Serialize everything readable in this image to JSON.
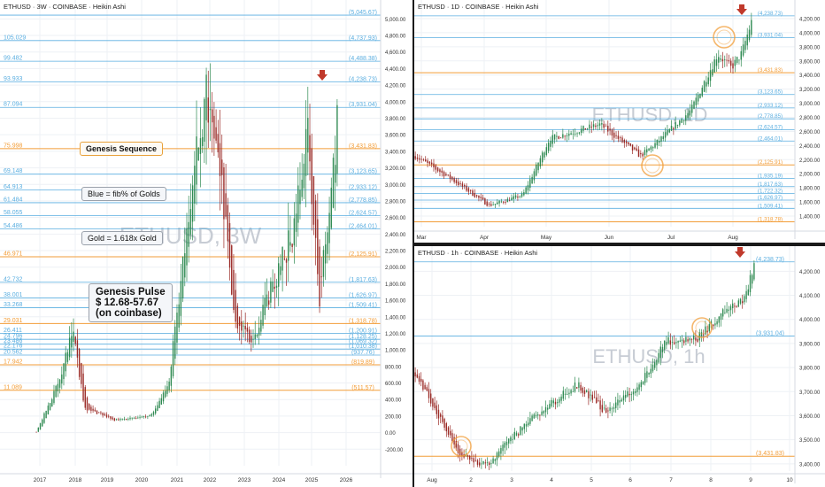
{
  "colors": {
    "orange": "#f29d38",
    "blue": "#5aaee0",
    "up": "#2f8a52",
    "down": "#9a2a26",
    "marker": "#c0392b",
    "grid": "#eef1f5"
  },
  "chart_data": [
    {
      "type": "candlestick",
      "title": "ETHUSD · 3W · COINBASE · Heikin Ashi",
      "watermark": "ETHUSD, 3W",
      "ylim": [
        -400,
        5100
      ],
      "x_ticks": [
        "2017",
        "2018",
        "2019",
        "2020",
        "2021",
        "2022",
        "2023",
        "2024",
        "2025",
        "2026"
      ],
      "y_ticks": [
        "5,000.00",
        "4,800.00",
        "4,600.00",
        "4,400.00",
        "4,200.00",
        "4,000.00",
        "3,800.00",
        "3,600.00",
        "3,400.00",
        "3,200.00",
        "3,000.00",
        "2,800.00",
        "2,600.00",
        "2,400.00",
        "2,200.00",
        "2,000.00",
        "1,800.00",
        "1,600.00",
        "1,400.00",
        "1,200.00",
        "1,000.00",
        "800.00",
        "600.00",
        "400.00",
        "200.00",
        "0.00",
        "-200.00"
      ],
      "y_tick_values": [
        5000,
        4800,
        4600,
        4400,
        4200,
        4000,
        3800,
        3600,
        3400,
        3200,
        3000,
        2800,
        2600,
        2400,
        2200,
        2000,
        1800,
        1600,
        1400,
        1200,
        1000,
        800,
        600,
        400,
        200,
        0,
        -200
      ],
      "levels": [
        {
          "left": "",
          "right": "(5,045.67)",
          "value": 5045.67,
          "color": "blue"
        },
        {
          "left": "105.029",
          "right": "(4,737.93)",
          "value": 4737.93,
          "color": "blue"
        },
        {
          "left": "99.482",
          "right": "(4,488.38)",
          "value": 4488.38,
          "color": "blue"
        },
        {
          "left": "93.933",
          "right": "(4,238.73)",
          "value": 4238.73,
          "color": "blue"
        },
        {
          "left": "87.094",
          "right": "(3,931.04)",
          "value": 3931.04,
          "color": "blue"
        },
        {
          "left": "75.998",
          "right": "(3,431.83)",
          "value": 3431.83,
          "color": "orange"
        },
        {
          "left": "69.148",
          "right": "(3,123.65)",
          "value": 3123.65,
          "color": "blue"
        },
        {
          "left": "64.913",
          "right": "(2,933.12)",
          "value": 2933.12,
          "color": "blue"
        },
        {
          "left": "61.484",
          "right": "(2,778.85)",
          "value": 2778.85,
          "color": "blue"
        },
        {
          "left": "58.055",
          "right": "(2,624.57)",
          "value": 2624.57,
          "color": "blue"
        },
        {
          "left": "54.486",
          "right": "(2,464.01)",
          "value": 2464.01,
          "color": "blue"
        },
        {
          "left": "46.971",
          "right": "(2,125.91)",
          "value": 2125.91,
          "color": "orange"
        },
        {
          "left": "42.732",
          "right": "(1,817.63)",
          "value": 1817.63,
          "color": "blue"
        },
        {
          "left": "38.001",
          "right": "(1,626.97)",
          "value": 1626.97,
          "color": "blue"
        },
        {
          "left": "33.268",
          "right": "(1,509.41)",
          "value": 1509.41,
          "color": "blue"
        },
        {
          "left": "29.031",
          "right": "(1,318.78)",
          "value": 1318.78,
          "color": "orange"
        },
        {
          "left": "26.411",
          "right": "(1,200.91)",
          "value": 1200.91,
          "color": "blue"
        },
        {
          "left": "24.796",
          "right": "(1,128.25)",
          "value": 1128.25,
          "color": "blue"
        },
        {
          "left": "23.486",
          "right": "(1,069.32)",
          "value": 1069.32,
          "color": "blue"
        },
        {
          "left": "22.176",
          "right": "(1,010.38)",
          "value": 1010.38,
          "color": "blue"
        },
        {
          "left": "20.562",
          "right": "(937.76)",
          "value": 937.76,
          "color": "blue"
        },
        {
          "left": "17.942",
          "right": "(819.89)",
          "value": 819.89,
          "color": "orange"
        },
        {
          "left": "11.089",
          "right": "(511.57)",
          "value": 511.57,
          "color": "orange"
        }
      ],
      "annotations": {
        "genesis_sequence": "Genesis Sequence",
        "blue_note": "Blue = fib% of Golds",
        "gold_note": "Gold = 1.618x Gold",
        "pulse_line1": "Genesis Pulse",
        "pulse_line2": "$ 12.68-57.67",
        "pulse_line3": "(on coinbase)"
      }
    },
    {
      "type": "candlestick",
      "title": "ETHUSD · 1D · COINBASE · Heikin Ashi",
      "watermark": "ETHUSD, 1D",
      "ylim": [
        1250,
        4300
      ],
      "x_ticks": [
        "Mar",
        "Apr",
        "May",
        "Jun",
        "Jul",
        "Aug"
      ],
      "y_ticks": [
        "4,200.00",
        "4,000.00",
        "3,800.00",
        "3,600.00",
        "3,400.00",
        "3,200.00",
        "3,000.00",
        "2,800.00",
        "2,600.00",
        "2,400.00",
        "2,200.00",
        "2,000.00",
        "1,800.00",
        "1,600.00",
        "1,400.00"
      ],
      "y_tick_values": [
        4200,
        4000,
        3800,
        3600,
        3400,
        3200,
        3000,
        2800,
        2600,
        2400,
        2200,
        2000,
        1800,
        1600,
        1400
      ],
      "levels": [
        {
          "right": "(4,238.73)",
          "value": 4238.73,
          "color": "blue"
        },
        {
          "right": "(3,931.04)",
          "value": 3931.04,
          "color": "blue"
        },
        {
          "right": "(3,431.83)",
          "value": 3431.83,
          "color": "orange"
        },
        {
          "right": "(3,123.65)",
          "value": 3123.65,
          "color": "blue"
        },
        {
          "right": "(2,933.12)",
          "value": 2933.12,
          "color": "blue"
        },
        {
          "right": "(2,778.85)",
          "value": 2778.85,
          "color": "blue"
        },
        {
          "right": "(2,624.57)",
          "value": 2624.57,
          "color": "blue"
        },
        {
          "right": "(2,464.01)",
          "value": 2464.01,
          "color": "blue"
        },
        {
          "right": "(2,125.91)",
          "value": 2125.91,
          "color": "orange"
        },
        {
          "right": "(1,935.19)",
          "value": 1935.19,
          "color": "blue"
        },
        {
          "right": "(1,817.63)",
          "value": 1817.63,
          "color": "blue"
        },
        {
          "right": "(1,722.32)",
          "value": 1722.32,
          "color": "blue"
        },
        {
          "right": "(1,626.97)",
          "value": 1626.97,
          "color": "blue"
        },
        {
          "right": "(1,509.41)",
          "value": 1509.41,
          "color": "blue"
        },
        {
          "right": "(1,318.78)",
          "value": 1318.78,
          "color": "orange"
        }
      ]
    },
    {
      "type": "candlestick",
      "title": "ETHUSD · 1h · COINBASE · Heikin Ashi",
      "watermark": "ETHUSD, 1h",
      "ylim": [
        3370,
        4260
      ],
      "x_ticks": [
        "Aug",
        "2",
        "3",
        "4",
        "5",
        "6",
        "7",
        "8",
        "9",
        "10"
      ],
      "y_ticks": [
        "4,200.00",
        "4,100.00",
        "4,000.00",
        "3,900.00",
        "3,800.00",
        "3,700.00",
        "3,600.00",
        "3,500.00",
        "3,400.00"
      ],
      "y_tick_values": [
        4200,
        4100,
        4000,
        3900,
        3800,
        3700,
        3600,
        3500,
        3400
      ],
      "levels": [
        {
          "right": "(4,238.73)",
          "value": 4238.73,
          "color": "blue"
        },
        {
          "right": "(3,931.04)",
          "value": 3931.04,
          "color": "blue"
        },
        {
          "right": "(3,431.83)",
          "value": 3431.83,
          "color": "orange"
        }
      ]
    }
  ]
}
